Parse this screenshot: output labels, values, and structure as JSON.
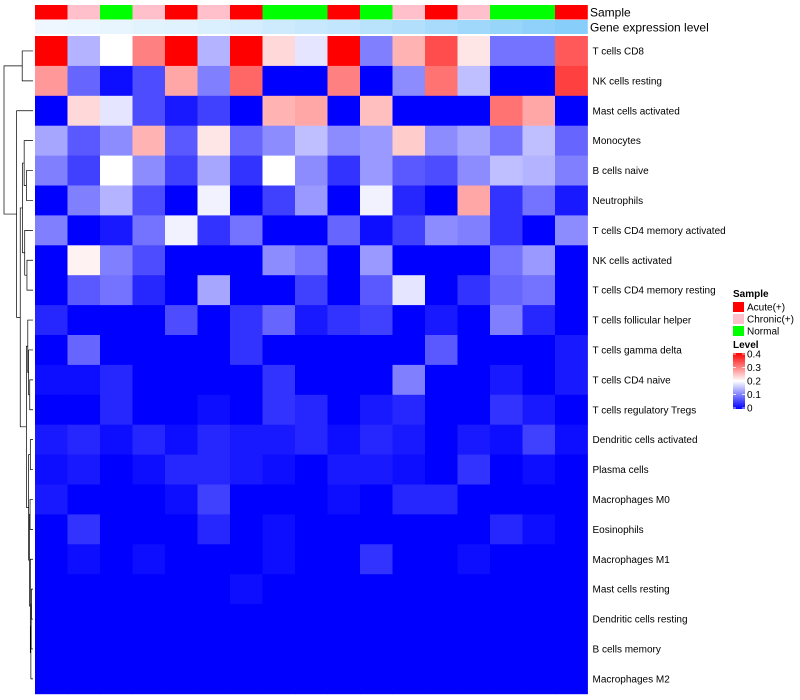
{
  "chart_data": {
    "type": "heatmap",
    "title": "",
    "annotations": [
      {
        "name": "Sample",
        "values": [
          "Acute(+)",
          "Chronic(+)",
          "Normal",
          "Chronic(+)",
          "Acute(+)",
          "Chronic(+)",
          "Acute(+)",
          "Normal",
          "Normal",
          "Acute(+)",
          "Normal",
          "Chronic(+)",
          "Acute(+)",
          "Chronic(+)",
          "Normal",
          "Normal",
          "Acute(+)"
        ]
      },
      {
        "name": "Gene expression level",
        "values": [
          0.02,
          0.05,
          0.08,
          0.12,
          0.15,
          0.2,
          0.26,
          0.32,
          0.38,
          0.44,
          0.52,
          0.6,
          0.68,
          0.76,
          0.84,
          0.92,
          1.0
        ]
      }
    ],
    "rows": [
      "T cells CD8",
      "NK cells resting",
      "Mast cells activated",
      "Monocytes",
      "B cells naive",
      "Neutrophils",
      "T cells CD4 memory activated",
      "NK cells activated",
      "T cells CD4 memory resting",
      "T cells follicular helper",
      "T cells gamma delta",
      "T cells CD4 naive",
      "T cells regulatory  Tregs",
      "Dendritic cells activated",
      "Plasma cells",
      "Macrophages M0",
      "Eosinophils",
      "Macrophages M1",
      "Mast cells resting",
      "Dendritic cells resting",
      "B cells memory",
      "Macrophages M2"
    ],
    "n_columns": 17,
    "values": [
      [
        0.4,
        0.14,
        0.2,
        0.3,
        0.4,
        0.14,
        0.4,
        0.23,
        0.18,
        0.4,
        0.1,
        0.26,
        0.34,
        0.22,
        0.09,
        0.09,
        0.33
      ],
      [
        0.28,
        0.08,
        0.01,
        0.06,
        0.27,
        0.1,
        0.32,
        0.0,
        0.0,
        0.3,
        0.0,
        0.11,
        0.31,
        0.15,
        0.0,
        0.0,
        0.35
      ],
      [
        0.0,
        0.23,
        0.18,
        0.06,
        0.02,
        0.05,
        0.0,
        0.26,
        0.27,
        0.0,
        0.25,
        0.0,
        0.0,
        0.0,
        0.31,
        0.27,
        0.0
      ],
      [
        0.13,
        0.07,
        0.11,
        0.26,
        0.07,
        0.22,
        0.08,
        0.11,
        0.15,
        0.11,
        0.12,
        0.24,
        0.11,
        0.13,
        0.09,
        0.15,
        0.08
      ],
      [
        0.1,
        0.05,
        0.2,
        0.11,
        0.05,
        0.13,
        0.04,
        0.2,
        0.11,
        0.04,
        0.12,
        0.07,
        0.06,
        0.11,
        0.15,
        0.14,
        0.1
      ],
      [
        0.0,
        0.1,
        0.14,
        0.06,
        0.0,
        0.19,
        0.0,
        0.05,
        0.12,
        0.0,
        0.19,
        0.03,
        0.0,
        0.27,
        0.04,
        0.09,
        0.02
      ],
      [
        0.1,
        0.0,
        0.02,
        0.09,
        0.19,
        0.04,
        0.09,
        0.0,
        0.0,
        0.08,
        0.01,
        0.05,
        0.11,
        0.1,
        0.04,
        0.0,
        0.11
      ],
      [
        0.0,
        0.21,
        0.1,
        0.06,
        0.0,
        0.0,
        0.0,
        0.11,
        0.09,
        0.0,
        0.12,
        0.0,
        0.0,
        0.0,
        0.09,
        0.12,
        0.0
      ],
      [
        0.0,
        0.07,
        0.09,
        0.03,
        0.0,
        0.13,
        0.0,
        0.0,
        0.05,
        0.0,
        0.07,
        0.18,
        0.0,
        0.04,
        0.08,
        0.09,
        0.0
      ],
      [
        0.03,
        0.0,
        0.0,
        0.0,
        0.06,
        0.0,
        0.04,
        0.08,
        0.02,
        0.04,
        0.05,
        0.0,
        0.02,
        0.0,
        0.1,
        0.03,
        0.0
      ],
      [
        0.0,
        0.08,
        0.0,
        0.0,
        0.0,
        0.0,
        0.04,
        0.0,
        0.0,
        0.0,
        0.0,
        0.0,
        0.07,
        0.0,
        0.0,
        0.0,
        0.02
      ],
      [
        0.01,
        0.01,
        0.03,
        0.0,
        0.0,
        0.0,
        0.0,
        0.04,
        0.0,
        0.0,
        0.0,
        0.1,
        0.0,
        0.0,
        0.02,
        0.0,
        0.02
      ],
      [
        0.0,
        0.0,
        0.03,
        0.0,
        0.0,
        0.01,
        0.0,
        0.04,
        0.03,
        0.0,
        0.02,
        0.03,
        0.0,
        0.0,
        0.04,
        0.02,
        0.0
      ],
      [
        0.02,
        0.03,
        0.01,
        0.03,
        0.01,
        0.03,
        0.02,
        0.02,
        0.03,
        0.01,
        0.03,
        0.02,
        0.0,
        0.02,
        0.01,
        0.05,
        0.01
      ],
      [
        0.01,
        0.02,
        0.0,
        0.01,
        0.03,
        0.03,
        0.02,
        0.01,
        0.0,
        0.02,
        0.02,
        0.01,
        0.0,
        0.04,
        0.0,
        0.01,
        0.0
      ],
      [
        0.02,
        0.0,
        0.0,
        0.0,
        0.01,
        0.05,
        0.0,
        0.0,
        0.0,
        0.01,
        0.0,
        0.03,
        0.03,
        0.0,
        0.0,
        0.0,
        0.0
      ],
      [
        0.0,
        0.04,
        0.0,
        0.0,
        0.0,
        0.03,
        0.0,
        0.01,
        0.0,
        0.0,
        0.0,
        0.0,
        0.0,
        0.0,
        0.03,
        0.01,
        0.0
      ],
      [
        0.0,
        0.01,
        0.0,
        0.01,
        0.0,
        0.0,
        0.0,
        0.01,
        0.0,
        0.0,
        0.04,
        0.0,
        0.0,
        0.01,
        0.0,
        0.0,
        0.0
      ],
      [
        0.0,
        0.0,
        0.0,
        0.0,
        0.0,
        0.0,
        0.01,
        0.0,
        0.0,
        0.0,
        0.0,
        0.0,
        0.0,
        0.0,
        0.0,
        0.0,
        0.0
      ],
      [
        0.0,
        0.0,
        0.0,
        0.0,
        0.0,
        0.0,
        0.0,
        0.0,
        0.0,
        0.0,
        0.0,
        0.0,
        0.0,
        0.0,
        0.0,
        0.0,
        0.0
      ],
      [
        0.0,
        0.0,
        0.0,
        0.0,
        0.0,
        0.0,
        0.0,
        0.0,
        0.0,
        0.0,
        0.0,
        0.0,
        0.0,
        0.0,
        0.0,
        0.0,
        0.0
      ],
      [
        0.0,
        0.0,
        0.0,
        0.0,
        0.0,
        0.0,
        0.0,
        0.0,
        0.0,
        0.0,
        0.0,
        0.0,
        0.0,
        0.0,
        0.0,
        0.0,
        0.0
      ]
    ],
    "color_scale": {
      "min": 0,
      "max": 0.4,
      "colors": [
        "#0000ff",
        "#ffffff",
        "#ff0000"
      ],
      "ticks": [
        "0.4",
        "0.3",
        "0.2",
        "0.1",
        "0"
      ]
    },
    "legend": {
      "sample": {
        "title": "Sample",
        "items": [
          {
            "label": "Acute(+)",
            "color": "#ff0000"
          },
          {
            "label": "Chronic(+)",
            "color": "#ffc0cb"
          },
          {
            "label": "Normal",
            "color": "#00ff00"
          }
        ]
      },
      "level": {
        "title": "Level"
      }
    },
    "sample_colors": {
      "Acute(+)": "#ff0000",
      "Chronic(+)": "#ffc0cb",
      "Normal": "#00ff00"
    },
    "gene_level_colors": [
      "#f0f8ff",
      "#87cefa"
    ]
  }
}
